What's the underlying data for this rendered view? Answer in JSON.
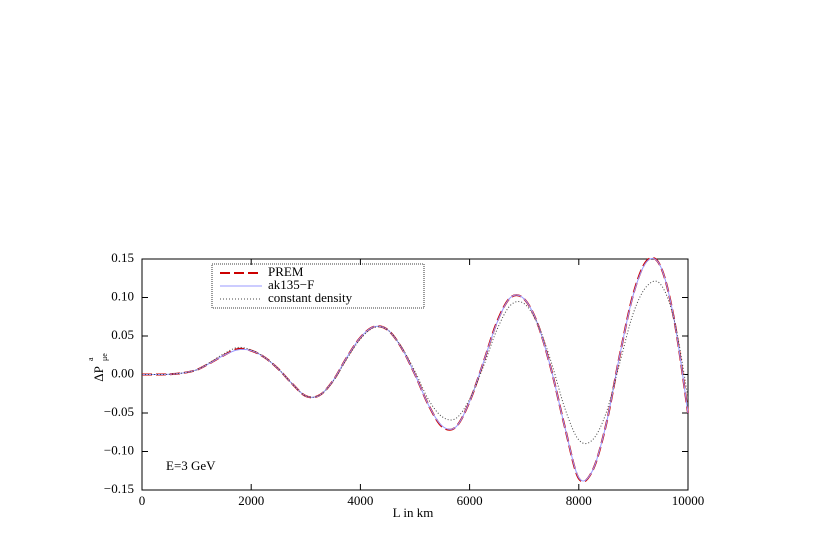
{
  "chart_data": {
    "type": "line",
    "x_label": "L in km",
    "y_label": "ΔP",
    "y_label_sup": "a",
    "y_label_sub": "μe",
    "annotation": "E=3 GeV",
    "x": [
      0,
      250,
      500,
      750,
      1000,
      1250,
      1500,
      1750,
      2000,
      2250,
      2500,
      2750,
      3000,
      3250,
      3500,
      3750,
      4000,
      4250,
      4500,
      4750,
      5000,
      5250,
      5500,
      5750,
      6000,
      6250,
      6500,
      6750,
      7000,
      7250,
      7500,
      7750,
      8000,
      8250,
      8500,
      8750,
      9000,
      9250,
      9500,
      9750,
      10000
    ],
    "series": [
      {
        "name": "PREM",
        "color": "#cc0000",
        "style": "dashed",
        "values": [
          0,
          0,
          0.0003,
          0.002,
          0.006,
          0.015,
          0.025,
          0.033,
          0.031,
          0.022,
          0.007,
          -0.012,
          -0.028,
          -0.027,
          -0.008,
          0.022,
          0.048,
          0.062,
          0.058,
          0.035,
          0.0,
          -0.04,
          -0.068,
          -0.068,
          -0.035,
          0.015,
          0.068,
          0.1,
          0.098,
          0.065,
          0.005,
          -0.07,
          -0.135,
          -0.125,
          -0.065,
          0.025,
          0.105,
          0.148,
          0.14,
          0.07,
          -0.05
        ]
      },
      {
        "name": "ak135−F",
        "color": "#9999ff",
        "style": "solid",
        "values": [
          0,
          0,
          0.0003,
          0.002,
          0.006,
          0.015,
          0.025,
          0.032,
          0.031,
          0.022,
          0.007,
          -0.012,
          -0.028,
          -0.027,
          -0.008,
          0.022,
          0.048,
          0.062,
          0.058,
          0.035,
          0.0,
          -0.04,
          -0.067,
          -0.068,
          -0.035,
          0.015,
          0.067,
          0.1,
          0.098,
          0.065,
          0.005,
          -0.07,
          -0.134,
          -0.125,
          -0.065,
          0.025,
          0.104,
          0.147,
          0.14,
          0.07,
          -0.05
        ]
      },
      {
        "name": "constant density",
        "color": "#444444",
        "style": "dotted",
        "values": [
          0,
          0,
          0.0003,
          0.002,
          0.006,
          0.016,
          0.027,
          0.035,
          0.032,
          0.022,
          0.007,
          -0.012,
          -0.028,
          -0.027,
          -0.009,
          0.02,
          0.046,
          0.061,
          0.058,
          0.036,
          0.004,
          -0.033,
          -0.055,
          -0.057,
          -0.032,
          0.01,
          0.058,
          0.09,
          0.092,
          0.065,
          0.015,
          -0.045,
          -0.085,
          -0.085,
          -0.05,
          0.015,
          0.08,
          0.115,
          0.117,
          0.07,
          -0.03
        ]
      }
    ],
    "xlim": [
      0,
      10000
    ],
    "xticks": [
      0,
      2000,
      4000,
      6000,
      8000,
      10000
    ],
    "ylim": [
      -0.15,
      0.15
    ],
    "yticks": [
      {
        "value": -0.15,
        "label": "−0.15"
      },
      {
        "value": -0.1,
        "label": "−0.10"
      },
      {
        "value": -0.05,
        "label": "−0.05"
      },
      {
        "value": 0,
        "label": "0.00"
      },
      {
        "value": 0.05,
        "label": "0.05"
      },
      {
        "value": 0.1,
        "label": "0.10"
      },
      {
        "value": 0.15,
        "label": "0.15"
      }
    ],
    "legend": "top-left"
  }
}
